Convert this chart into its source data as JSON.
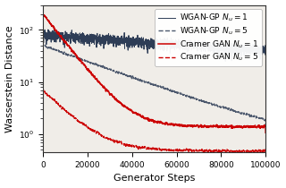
{
  "xlabel": "Generator Steps",
  "ylabel": "Wasserstein Distance",
  "xlim": [
    0,
    100000
  ],
  "ylim_log": [
    0.45,
    300
  ],
  "x_ticks": [
    0,
    20000,
    40000,
    60000,
    80000,
    100000
  ],
  "x_tick_labels": [
    "0",
    "20000",
    "40000",
    "60000",
    "80000",
    "100000"
  ],
  "dark_blue": "#2e3d56",
  "red": "#cc0000",
  "n_points": 2000,
  "background_color": "#f0ede8"
}
